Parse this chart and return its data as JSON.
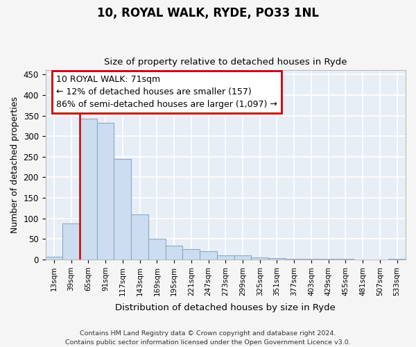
{
  "title": "10, ROYAL WALK, RYDE, PO33 1NL",
  "subtitle": "Size of property relative to detached houses in Ryde",
  "xlabel": "Distribution of detached houses by size in Ryde",
  "ylabel": "Number of detached properties",
  "bar_color": "#ccddef",
  "bar_edge_color": "#88aac8",
  "bg_color": "#e8eef6",
  "grid_color": "#ffffff",
  "fig_color": "#f5f5f5",
  "categories": [
    "13sqm",
    "39sqm",
    "65sqm",
    "91sqm",
    "117sqm",
    "143sqm",
    "169sqm",
    "195sqm",
    "221sqm",
    "247sqm",
    "273sqm",
    "299sqm",
    "325sqm",
    "351sqm",
    "377sqm",
    "403sqm",
    "429sqm",
    "455sqm",
    "481sqm",
    "507sqm",
    "533sqm"
  ],
  "values": [
    7,
    88,
    342,
    333,
    245,
    110,
    50,
    33,
    26,
    21,
    10,
    10,
    5,
    3,
    2,
    2,
    1,
    1,
    0,
    0,
    2
  ],
  "annotation_text": "10 ROYAL WALK: 71sqm\n← 12% of detached houses are smaller (157)\n86% of semi-detached houses are larger (1,097) →",
  "annotation_box_color": "#ffffff",
  "annotation_box_edge": "#cc0000",
  "marker_line_color": "#cc0000",
  "marker_bin_index": 2,
  "ylim": [
    0,
    460
  ],
  "yticks": [
    0,
    50,
    100,
    150,
    200,
    250,
    300,
    350,
    400,
    450
  ],
  "footer": "Contains HM Land Registry data © Crown copyright and database right 2024.\nContains public sector information licensed under the Open Government Licence v3.0."
}
